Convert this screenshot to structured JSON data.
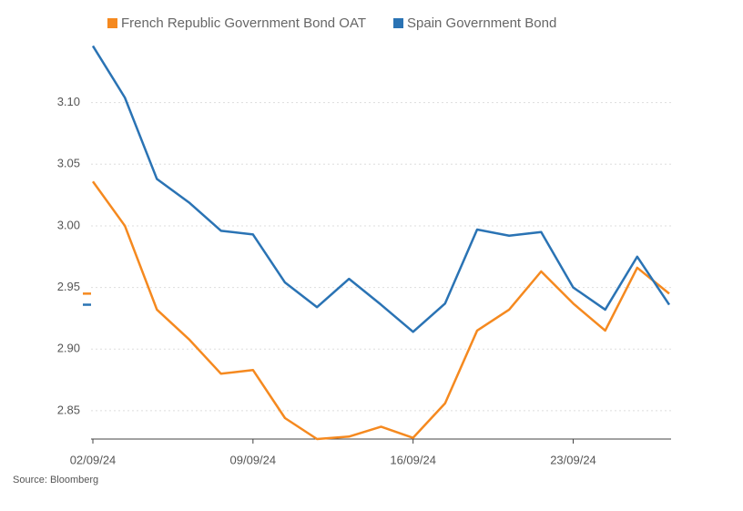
{
  "chart_data": {
    "type": "line",
    "categories": [
      "02/09/24",
      null,
      null,
      null,
      null,
      "09/09/24",
      null,
      null,
      null,
      null,
      "16/09/24",
      null,
      null,
      null,
      null,
      "23/09/24",
      null,
      null,
      null
    ],
    "series": [
      {
        "name": "French Republic Government Bond OAT",
        "color": "#f5891f",
        "values": [
          3.036,
          3.0,
          2.932,
          2.908,
          2.88,
          2.883,
          2.844,
          2.827,
          2.829,
          2.837,
          2.828,
          2.856,
          2.915,
          2.932,
          2.963,
          2.937,
          2.915,
          2.966,
          2.945
        ]
      },
      {
        "name": "Spain Government Bond",
        "color": "#2a73b4",
        "values": [
          3.146,
          3.104,
          3.038,
          3.019,
          2.996,
          2.993,
          2.954,
          2.934,
          2.957,
          2.936,
          2.914,
          2.937,
          2.997,
          2.992,
          2.995,
          2.95,
          2.932,
          2.975,
          2.936
        ]
      }
    ],
    "ylim": [
      2.827,
      3.15
    ],
    "yticks": [
      2.85,
      {
        "value": 2.9,
        "label": "2.90"
      },
      2.95,
      {
        "value": 3,
        "label": "3.00"
      },
      3.05,
      {
        "value": 3.1,
        "label": "3.10"
      }
    ],
    "grid": true,
    "legend": "top",
    "source": "Source: Bloomberg"
  }
}
